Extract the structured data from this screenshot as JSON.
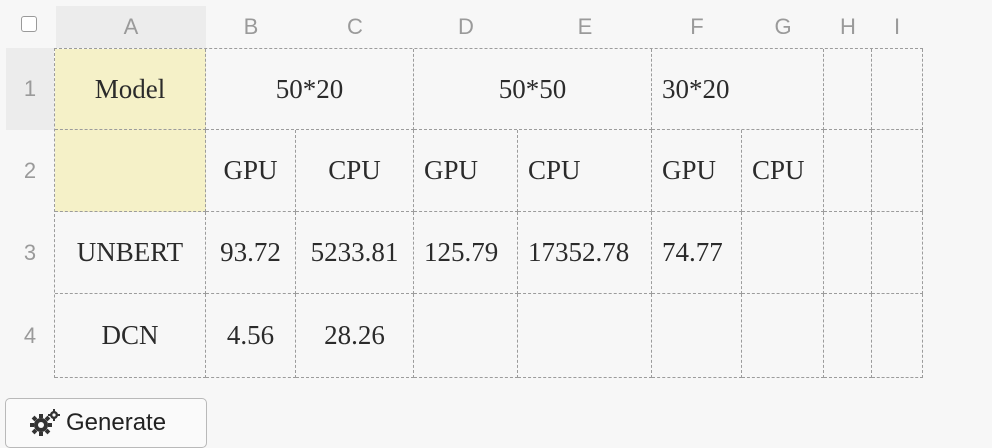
{
  "columns": [
    "A",
    "B",
    "C",
    "D",
    "E",
    "F",
    "G",
    "H",
    "I"
  ],
  "rows": [
    "1",
    "2",
    "3",
    "4"
  ],
  "cells": {
    "r1": {
      "a": "Model",
      "b": "50*20",
      "d": "50*50",
      "f": "30*20"
    },
    "r2": {
      "b": "GPU",
      "c": "CPU",
      "d": "GPU",
      "e": "CPU",
      "f": "GPU",
      "g": "CPU"
    },
    "r3": {
      "a": "UNBERT",
      "b": "93.72",
      "c": "5233.81",
      "d": "125.79",
      "e": "17352.78",
      "f": "74.77"
    },
    "r4": {
      "a": "DCN",
      "b": "4.56",
      "c": "28.26"
    }
  },
  "button": {
    "label": "Generate",
    "icon": "gears-icon"
  },
  "colors": {
    "selected_cell": "#f5f1c8",
    "header_highlight": "#ececec"
  }
}
